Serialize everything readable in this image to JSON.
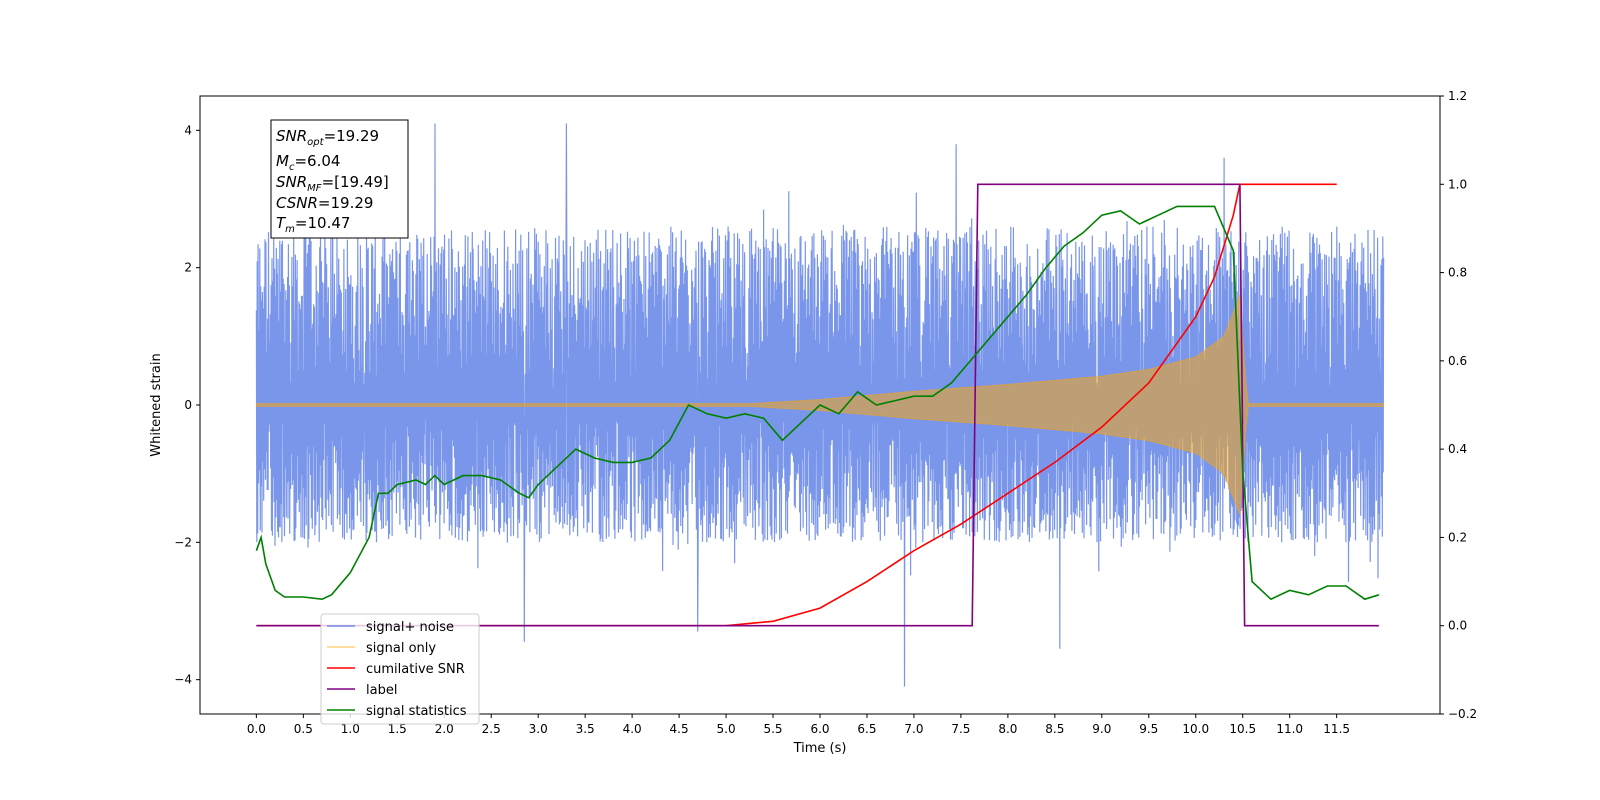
{
  "chart_data": {
    "type": "line",
    "xlabel": "Time (s)",
    "ylabel": "Whitened strain",
    "xlim": [
      -0.6,
      12.6
    ],
    "ylim": [
      -4.5,
      4.5
    ],
    "y2lim": [
      -0.2,
      1.2
    ],
    "x_ticks": [
      0.0,
      0.5,
      1.0,
      1.5,
      2.0,
      2.5,
      3.0,
      3.5,
      4.0,
      4.5,
      5.0,
      5.5,
      6.0,
      6.5,
      7.0,
      7.5,
      8.0,
      8.5,
      9.0,
      9.5,
      10.0,
      10.5,
      11.0,
      11.5
    ],
    "x_tick_labels": [
      "0.0",
      "0.5",
      "1.0",
      "1.5",
      "2.0",
      "2.5",
      "3.0",
      "3.5",
      "4.0",
      "4.5",
      "5.0",
      "5.5",
      "6.0",
      "6.5",
      "7.0",
      "7.5",
      "8.0",
      "8.5",
      "9.0",
      "9.5",
      "10.0",
      "10.5",
      "11.0",
      "11.5"
    ],
    "y_ticks": [
      -4,
      -2,
      0,
      2,
      4
    ],
    "y_tick_labels": [
      "−4",
      "−2",
      "0",
      "2",
      "4"
    ],
    "y2_ticks": [
      -0.2,
      0.0,
      0.2,
      0.4,
      0.6,
      0.8,
      1.0,
      1.2
    ],
    "y2_tick_labels": [
      "−0.2",
      "0.0",
      "0.2",
      "0.4",
      "0.6",
      "0.8",
      "1.0",
      "1.2"
    ],
    "grid": false,
    "legend_position": "lower-left",
    "annotation": {
      "lines": [
        {
          "main": "SNR",
          "sub": "opt",
          "value": "=19.29"
        },
        {
          "main": "M",
          "sub": "c",
          "value": "=6.04"
        },
        {
          "main": "SNR",
          "sub": "MF",
          "value": "=[19.49]"
        },
        {
          "main": "CSNR",
          "sub": "",
          "value": "=19.29"
        },
        {
          "main": "T",
          "sub": "m",
          "value": "=10.47"
        }
      ]
    },
    "series": [
      {
        "name": "signal+ noise",
        "axis": "left",
        "color": "#4169e1",
        "kind": "noise",
        "x_range": [
          0.0,
          12.0
        ],
        "noise_band": [
          -2.0,
          2.6
        ],
        "spikes": [
          {
            "x": 1.9,
            "y": 4.1
          },
          {
            "x": 3.3,
            "y": 4.1
          },
          {
            "x": 6.9,
            "y": -4.1
          },
          {
            "x": 2.85,
            "y": -3.45
          },
          {
            "x": 8.55,
            "y": -3.55
          },
          {
            "x": 4.7,
            "y": -3.3
          },
          {
            "x": 7.45,
            "y": 3.8
          },
          {
            "x": 10.3,
            "y": 3.6
          }
        ]
      },
      {
        "name": "signal only",
        "axis": "left",
        "color": "#ffa500",
        "kind": "chirp",
        "x_range": [
          0.0,
          12.0
        ],
        "envelope": {
          "x": [
            0.0,
            5.0,
            6.0,
            7.0,
            8.0,
            9.0,
            9.5,
            10.0,
            10.3,
            10.47,
            10.55,
            12.0
          ],
          "y": [
            0.0,
            0.0,
            0.08,
            0.2,
            0.3,
            0.42,
            0.52,
            0.7,
            1.0,
            1.6,
            0.0,
            0.0
          ]
        }
      },
      {
        "name": "cumilative SNR",
        "axis": "right",
        "color": "#ff0000",
        "x": [
          0.0,
          4.0,
          5.0,
          5.5,
          6.0,
          6.5,
          7.0,
          7.5,
          8.0,
          8.5,
          9.0,
          9.5,
          10.0,
          10.2,
          10.4,
          10.47,
          11.5
        ],
        "y": [
          0.0,
          0.0,
          0.0,
          0.01,
          0.04,
          0.1,
          0.17,
          0.23,
          0.3,
          0.37,
          0.45,
          0.55,
          0.7,
          0.79,
          0.93,
          1.0,
          1.0
        ]
      },
      {
        "name": "label",
        "axis": "right",
        "color": "#800080",
        "x": [
          0.0,
          7.62,
          7.68,
          10.47,
          10.52,
          11.95
        ],
        "y": [
          0.0,
          0.0,
          1.0,
          1.0,
          0.0,
          0.0
        ]
      },
      {
        "name": "signal statistics",
        "axis": "right",
        "color": "#008000",
        "x": [
          0.0,
          0.05,
          0.1,
          0.2,
          0.3,
          0.5,
          0.7,
          0.8,
          1.0,
          1.2,
          1.3,
          1.4,
          1.5,
          1.7,
          1.8,
          1.9,
          2.0,
          2.2,
          2.4,
          2.6,
          2.8,
          2.9,
          3.0,
          3.2,
          3.4,
          3.6,
          3.8,
          4.0,
          4.2,
          4.4,
          4.6,
          4.8,
          5.0,
          5.2,
          5.4,
          5.6,
          5.8,
          6.0,
          6.2,
          6.4,
          6.6,
          6.8,
          7.0,
          7.2,
          7.4,
          7.6,
          7.8,
          8.0,
          8.2,
          8.4,
          8.6,
          8.8,
          9.0,
          9.2,
          9.4,
          9.6,
          9.8,
          10.0,
          10.2,
          10.4,
          10.5,
          10.6,
          10.8,
          11.0,
          11.2,
          11.4,
          11.6,
          11.8,
          11.95
        ],
        "y": [
          0.17,
          0.2,
          0.14,
          0.08,
          0.065,
          0.065,
          0.06,
          0.07,
          0.12,
          0.2,
          0.3,
          0.3,
          0.32,
          0.33,
          0.32,
          0.34,
          0.32,
          0.34,
          0.34,
          0.33,
          0.3,
          0.29,
          0.32,
          0.36,
          0.4,
          0.38,
          0.37,
          0.37,
          0.38,
          0.42,
          0.5,
          0.48,
          0.47,
          0.48,
          0.47,
          0.42,
          0.46,
          0.5,
          0.48,
          0.53,
          0.5,
          0.51,
          0.52,
          0.52,
          0.55,
          0.6,
          0.65,
          0.7,
          0.75,
          0.81,
          0.86,
          0.89,
          0.93,
          0.94,
          0.91,
          0.93,
          0.95,
          0.95,
          0.95,
          0.85,
          0.35,
          0.1,
          0.06,
          0.08,
          0.07,
          0.09,
          0.09,
          0.06,
          0.07
        ]
      }
    ]
  }
}
